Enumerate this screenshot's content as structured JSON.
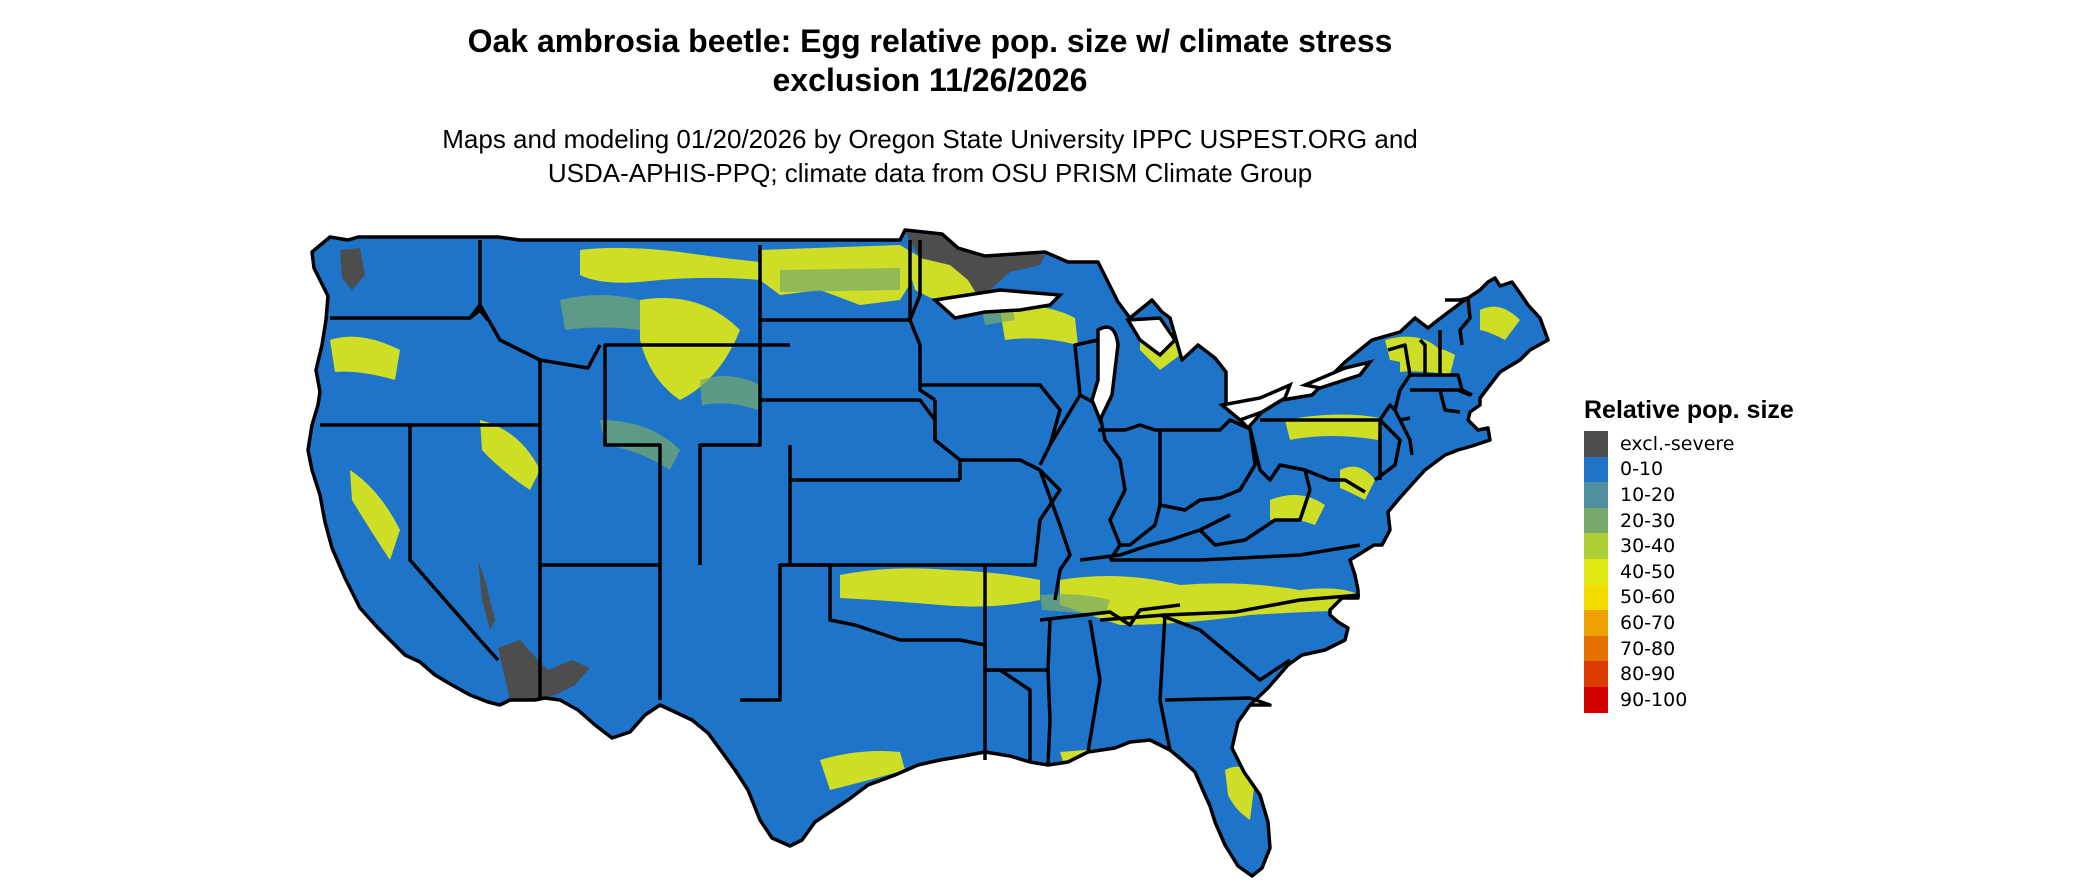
{
  "title": {
    "line1": "Oak ambrosia beetle: Egg relative pop. size w/ climate stress",
    "line2": "exclusion 11/26/2026"
  },
  "subtitle": {
    "line1": "Maps and modeling 01/20/2026 by Oregon State University IPPC USPEST.ORG and",
    "line2": "USDA-APHIS-PPQ; climate data from OSU PRISM Climate Group"
  },
  "legend": {
    "title": "Relative pop. size",
    "items": [
      {
        "label": "excl.-severe",
        "color": "#4d4d4d"
      },
      {
        "label": "0-10",
        "color": "#1e74c9"
      },
      {
        "label": "10-20",
        "color": "#4f8fa0"
      },
      {
        "label": "20-30",
        "color": "#78ab6b"
      },
      {
        "label": "30-40",
        "color": "#acd036"
      },
      {
        "label": "40-50",
        "color": "#e2ea14"
      },
      {
        "label": "50-60",
        "color": "#f4dc00"
      },
      {
        "label": "60-70",
        "color": "#eea200"
      },
      {
        "label": "70-80",
        "color": "#e57000"
      },
      {
        "label": "80-90",
        "color": "#dc3c00"
      },
      {
        "label": "90-100",
        "color": "#d40000"
      }
    ]
  }
}
